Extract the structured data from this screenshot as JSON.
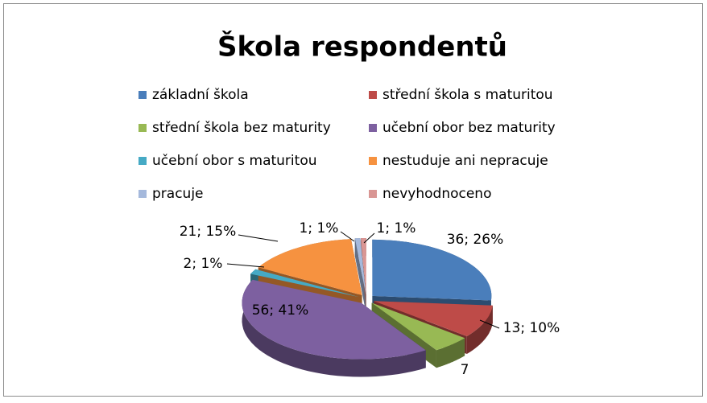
{
  "chart_data": {
    "type": "pie3d",
    "title": "Škola respondentů",
    "categories": [
      "základní škola",
      "střední škola s maturitou",
      "střední škola bez maturity",
      "učební obor bez maturity",
      "učební obor s maturitou",
      "nestuduje ani nepracuje",
      "pracuje",
      "nevyhodnoceno"
    ],
    "values": [
      36,
      13,
      7,
      56,
      2,
      21,
      1,
      1
    ],
    "value_labels": [
      "36; 26%",
      "13; 10%",
      "7",
      "56; 41%",
      "2; 1%",
      "21; 15%",
      "1; 1%",
      "1; 1%"
    ],
    "colors": [
      "#4a7ebb",
      "#be4b48",
      "#98b954",
      "#7d60a0",
      "#46aac5",
      "#f69240",
      "#a5b9dc",
      "#d99694"
    ],
    "legend": "top"
  }
}
